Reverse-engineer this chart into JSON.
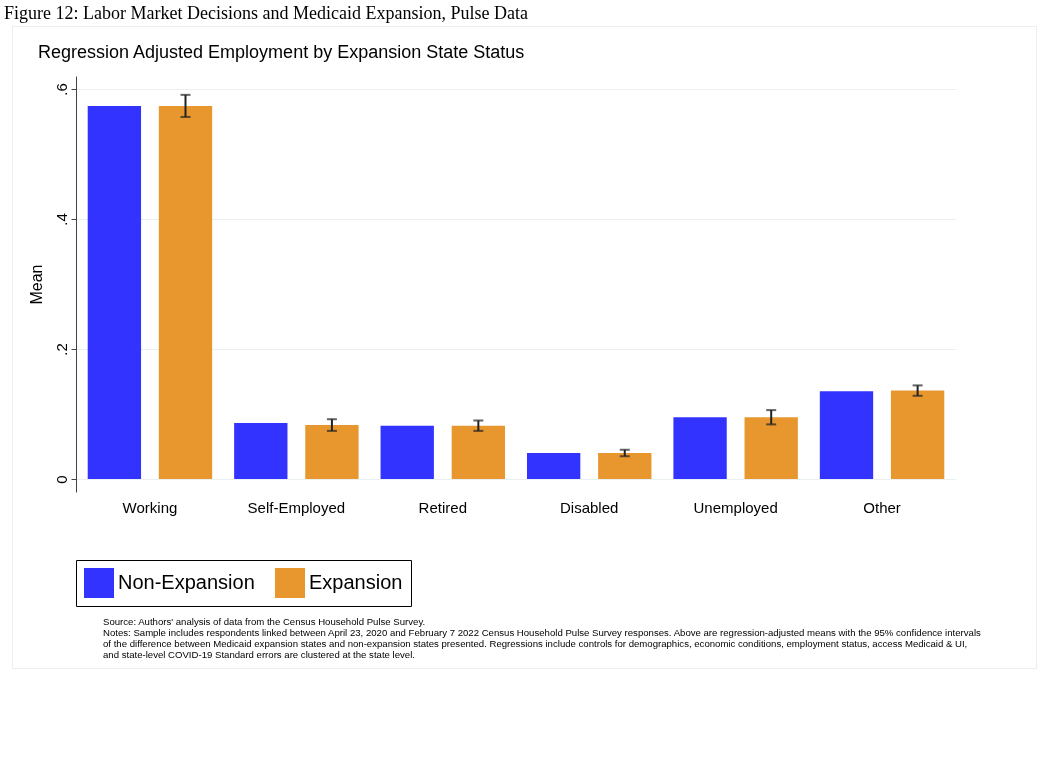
{
  "chart_data": {
    "type": "bar",
    "title": "Figure 12: Labor Market Decisions and Medicaid Expansion, Pulse Data",
    "subtitle": "Regression Adjusted Employment by Expansion State Status",
    "ylabel": "Mean",
    "categories": [
      "Working",
      "Self-Employed",
      "Retired",
      "Disabled",
      "Unemployed",
      "Other"
    ],
    "series": [
      {
        "name": "Non-Expansion",
        "color": "#3333ff",
        "values": [
          0.574,
          0.086,
          0.082,
          0.04,
          0.095,
          0.135
        ]
      },
      {
        "name": "Expansion",
        "color": "#e8972f",
        "values": [
          0.574,
          0.083,
          0.082,
          0.04,
          0.095,
          0.136
        ],
        "errors": [
          0.017,
          0.009,
          0.008,
          0.005,
          0.011,
          0.008
        ]
      }
    ],
    "ylim": [
      -0.02,
      0.62
    ],
    "yticks": [
      {
        "value": 0,
        "label": "0"
      },
      {
        "value": 0.2,
        "label": ".2"
      },
      {
        "value": 0.4,
        "label": ".4"
      },
      {
        "value": 0.6,
        "label": ".6"
      }
    ],
    "grid": "y",
    "legend": "bottom",
    "annotations": [
      "Source: Authors' analysis of data from the Census Household Pulse Survey.",
      "Notes: Sample includes respondents linked between April 23, 2020 and February 7 2022 Census Household Pulse Survey responses. Above are regression-adjusted means with the 95% confidence intervals of the difference between Medicaid expansion states and non-expansion states presented. Regressions include controls for demographics, economic conditions, employment status, access Medicaid & UI, and state-level COVID-19 Standard errors are clustered at the state level."
    ]
  }
}
